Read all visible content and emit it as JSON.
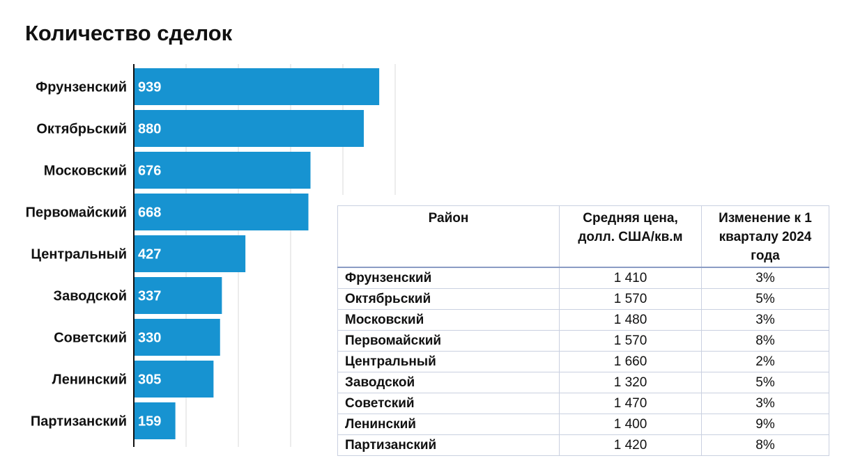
{
  "chart_data": {
    "type": "bar",
    "orientation": "horizontal",
    "title": "Количество сделок",
    "categories": [
      "Фрунзенский",
      "Октябрьский",
      "Московский",
      "Первомайский",
      "Центральный",
      "Заводской",
      "Советский",
      "Ленинский",
      "Партизанский"
    ],
    "values": [
      939,
      880,
      676,
      668,
      427,
      337,
      330,
      305,
      159
    ],
    "xlim": [
      0,
      1000
    ],
    "grid": true,
    "bar_color": "#1793d1",
    "value_label_color": "#ffffff"
  },
  "table": {
    "headers": [
      "Район",
      "Средняя цена, долл. США/кв.м",
      "Изменение к 1 кварталу 2024 года"
    ],
    "rows": [
      {
        "district": "Фрунзенский",
        "price": "1 410",
        "change": "3%"
      },
      {
        "district": "Октябрьский",
        "price": "1 570",
        "change": "5%"
      },
      {
        "district": "Московский",
        "price": "1 480",
        "change": "3%"
      },
      {
        "district": "Первомайский",
        "price": "1 570",
        "change": "8%"
      },
      {
        "district": "Центральный",
        "price": "1 660",
        "change": "2%"
      },
      {
        "district": "Заводской",
        "price": "1 320",
        "change": "5%"
      },
      {
        "district": "Советский",
        "price": "1 470",
        "change": "3%"
      },
      {
        "district": "Ленинский",
        "price": "1 400",
        "change": "9%"
      },
      {
        "district": "Партизанский",
        "price": "1 420",
        "change": "8%"
      }
    ]
  }
}
